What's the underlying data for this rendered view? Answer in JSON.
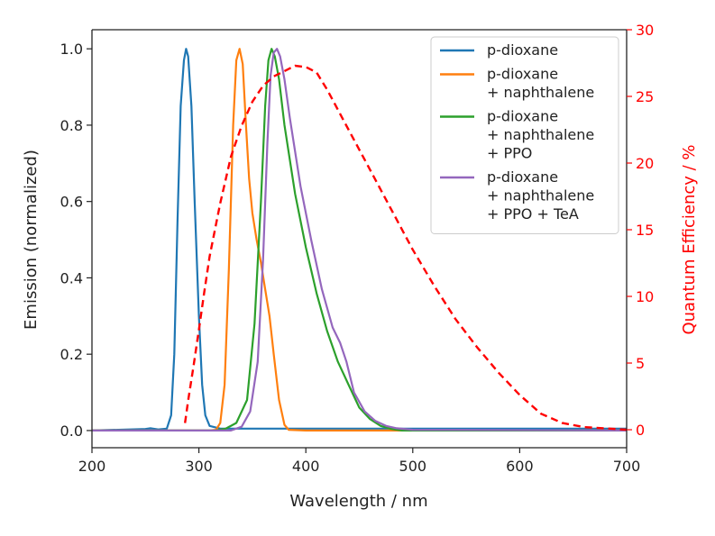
{
  "chart_data": {
    "type": "line",
    "xlabel": "Wavelength / nm",
    "ylabel": "Emission (normalized)",
    "y2label": "Quantum Efficiency / %",
    "xlim": [
      200,
      700
    ],
    "ylim": [
      -0.045,
      1.05
    ],
    "y2lim": [
      -1.35,
      30
    ],
    "x_ticks": [
      "200",
      "300",
      "400",
      "500",
      "600",
      "700"
    ],
    "y_ticks": [
      "0.0",
      "0.2",
      "0.4",
      "0.6",
      "0.8",
      "1.0"
    ],
    "y2_ticks": [
      "0",
      "5",
      "10",
      "15",
      "20",
      "25",
      "30"
    ],
    "grid": false,
    "legend_position": "top-right",
    "colors": {
      "blue": "#1f77b4",
      "orange": "#ff7f0e",
      "green": "#2ca02c",
      "purple": "#9467bd",
      "red": "#ff0000",
      "axis_right": "#ff0000"
    },
    "series": [
      {
        "name": "p-dioxane",
        "label_lines": [
          "p-dioxane"
        ],
        "color": "#1f77b4",
        "axis": "left",
        "style": "solid",
        "x": [
          200,
          250,
          255,
          262,
          270,
          274,
          277,
          280,
          283,
          286,
          288,
          290,
          293,
          296,
          300,
          303,
          306,
          310,
          320,
          350,
          400,
          500,
          600,
          700
        ],
        "y": [
          0,
          0.004,
          0.006,
          0.003,
          0.005,
          0.04,
          0.2,
          0.55,
          0.85,
          0.97,
          1.0,
          0.98,
          0.85,
          0.6,
          0.3,
          0.12,
          0.04,
          0.012,
          0.005,
          0.005,
          0.005,
          0.005,
          0.005,
          0.005
        ]
      },
      {
        "name": "p-dioxane + naphthalene",
        "label_lines": [
          "p-dioxane",
          "+ naphthalene"
        ],
        "color": "#ff7f0e",
        "axis": "left",
        "style": "solid",
        "x": [
          200,
          310,
          316,
          320,
          324,
          328,
          332,
          335,
          338,
          341,
          344,
          347,
          350,
          354,
          358,
          362,
          366,
          370,
          375,
          380,
          384,
          400,
          500,
          700
        ],
        "y": [
          0,
          0,
          0.002,
          0.02,
          0.12,
          0.42,
          0.8,
          0.97,
          1.0,
          0.96,
          0.8,
          0.66,
          0.57,
          0.5,
          0.44,
          0.37,
          0.3,
          0.2,
          0.08,
          0.015,
          0.002,
          0,
          0,
          0
        ]
      },
      {
        "name": "p-dioxane + naphthalene + PPO",
        "label_lines": [
          "p-dioxane",
          "+ naphthalene",
          "+ PPO"
        ],
        "color": "#2ca02c",
        "axis": "left",
        "style": "solid",
        "x": [
          200,
          315,
          325,
          335,
          345,
          352,
          358,
          362,
          365,
          368,
          371,
          375,
          380,
          390,
          400,
          410,
          420,
          430,
          440,
          450,
          460,
          470,
          480,
          490,
          700
        ],
        "y": [
          0,
          0,
          0.005,
          0.02,
          0.08,
          0.28,
          0.6,
          0.85,
          0.97,
          1.0,
          0.98,
          0.92,
          0.8,
          0.62,
          0.48,
          0.36,
          0.26,
          0.18,
          0.12,
          0.06,
          0.03,
          0.012,
          0.004,
          0,
          0
        ]
      },
      {
        "name": "p-dioxane + naphthalene + PPO + TeA",
        "label_lines": [
          "p-dioxane",
          "+ naphthalene",
          "+ PPO + TeA"
        ],
        "color": "#9467bd",
        "axis": "left",
        "style": "solid",
        "x": [
          200,
          330,
          340,
          348,
          355,
          360,
          364,
          367,
          370,
          373,
          376,
          380,
          385,
          395,
          405,
          415,
          425,
          432,
          438,
          445,
          455,
          465,
          475,
          485,
          500,
          700
        ],
        "y": [
          0,
          0,
          0.01,
          0.05,
          0.18,
          0.45,
          0.75,
          0.93,
          0.99,
          1.0,
          0.98,
          0.92,
          0.82,
          0.64,
          0.5,
          0.37,
          0.27,
          0.23,
          0.18,
          0.1,
          0.05,
          0.025,
          0.012,
          0.006,
          0.002,
          0
        ]
      },
      {
        "name": "Quantum Efficiency",
        "color": "#ff0000",
        "axis": "right",
        "style": "dashed",
        "x": [
          287,
          290,
          295,
          300,
          305,
          310,
          320,
          330,
          340,
          350,
          360,
          370,
          380,
          390,
          400,
          410,
          420,
          440,
          460,
          480,
          500,
          520,
          540,
          560,
          580,
          600,
          620,
          640,
          660,
          680,
          700
        ],
        "y": [
          0.5,
          2.2,
          4.8,
          7.5,
          10.3,
          13,
          17,
          20.5,
          22.8,
          24.6,
          25.8,
          26.5,
          26.9,
          27.3,
          27.2,
          26.8,
          25.5,
          22.5,
          19.5,
          16.5,
          13.5,
          10.8,
          8.3,
          6.2,
          4.3,
          2.6,
          1.2,
          0.5,
          0.2,
          0.1,
          0
        ]
      }
    ]
  }
}
